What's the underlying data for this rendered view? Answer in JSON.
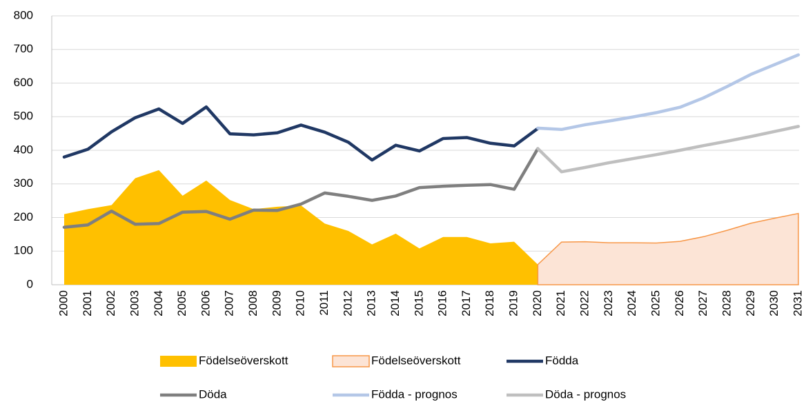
{
  "chart_data": {
    "type": "line",
    "categories": [
      "2000",
      "2001",
      "2002",
      "2003",
      "2004",
      "2005",
      "2006",
      "2007",
      "2008",
      "2009",
      "2010",
      "2011",
      "2012",
      "2013",
      "2014",
      "2015",
      "2016",
      "2017",
      "2018",
      "2019",
      "2020",
      "2021",
      "2022",
      "2023",
      "2024",
      "2025",
      "2026",
      "2027",
      "2028",
      "2029",
      "2030",
      "2031"
    ],
    "ylim": [
      0,
      800
    ],
    "yticks": [
      0,
      100,
      200,
      300,
      400,
      500,
      600,
      700,
      800
    ],
    "grid": true,
    "legend": "bottom",
    "series": [
      {
        "name": "Födelseöverskott",
        "kind": "area",
        "color": "#ffc000",
        "values": [
          210,
          225,
          237,
          317,
          341,
          265,
          310,
          252,
          225,
          232,
          236,
          182,
          160,
          120,
          152,
          108,
          142,
          142,
          123,
          128,
          60,
          null,
          null,
          null,
          null,
          null,
          null,
          null,
          null,
          null,
          null,
          null
        ]
      },
      {
        "name": "Födelseöverskott",
        "kind": "area",
        "color": "#fce4d6",
        "edge": "#f79646",
        "values": [
          null,
          null,
          null,
          null,
          null,
          null,
          null,
          null,
          null,
          null,
          null,
          null,
          null,
          null,
          null,
          null,
          null,
          null,
          null,
          null,
          60,
          127,
          128,
          125,
          125,
          124,
          129,
          143,
          162,
          183,
          198,
          212
        ]
      },
      {
        "name": "Födda",
        "kind": "line",
        "color": "#203864",
        "values": [
          380,
          403,
          455,
          497,
          523,
          480,
          529,
          449,
          446,
          452,
          475,
          454,
          424,
          371,
          415,
          398,
          435,
          438,
          421,
          413,
          465,
          null,
          null,
          null,
          null,
          null,
          null,
          null,
          null,
          null,
          null,
          null
        ]
      },
      {
        "name": "Döda",
        "kind": "line",
        "color": "#7f7f7f",
        "values": [
          171,
          178,
          219,
          180,
          182,
          216,
          218,
          195,
          222,
          221,
          240,
          273,
          263,
          251,
          264,
          289,
          293,
          296,
          298,
          284,
          405,
          null,
          null,
          null,
          null,
          null,
          null,
          null,
          null,
          null,
          null,
          null
        ]
      },
      {
        "name": "Födda - prognos",
        "kind": "line",
        "color": "#b4c7e7",
        "values": [
          null,
          null,
          null,
          null,
          null,
          null,
          null,
          null,
          null,
          null,
          null,
          null,
          null,
          null,
          null,
          null,
          null,
          null,
          null,
          null,
          466,
          462,
          476,
          487,
          499,
          512,
          528,
          556,
          590,
          626,
          655,
          684
        ]
      },
      {
        "name": "Döda - prognos",
        "kind": "line",
        "color": "#bfbfbf",
        "values": [
          null,
          null,
          null,
          null,
          null,
          null,
          null,
          null,
          null,
          null,
          null,
          null,
          null,
          null,
          null,
          null,
          null,
          null,
          null,
          null,
          405,
          336,
          349,
          363,
          375,
          387,
          400,
          414,
          427,
          441,
          456,
          471
        ]
      }
    ]
  }
}
